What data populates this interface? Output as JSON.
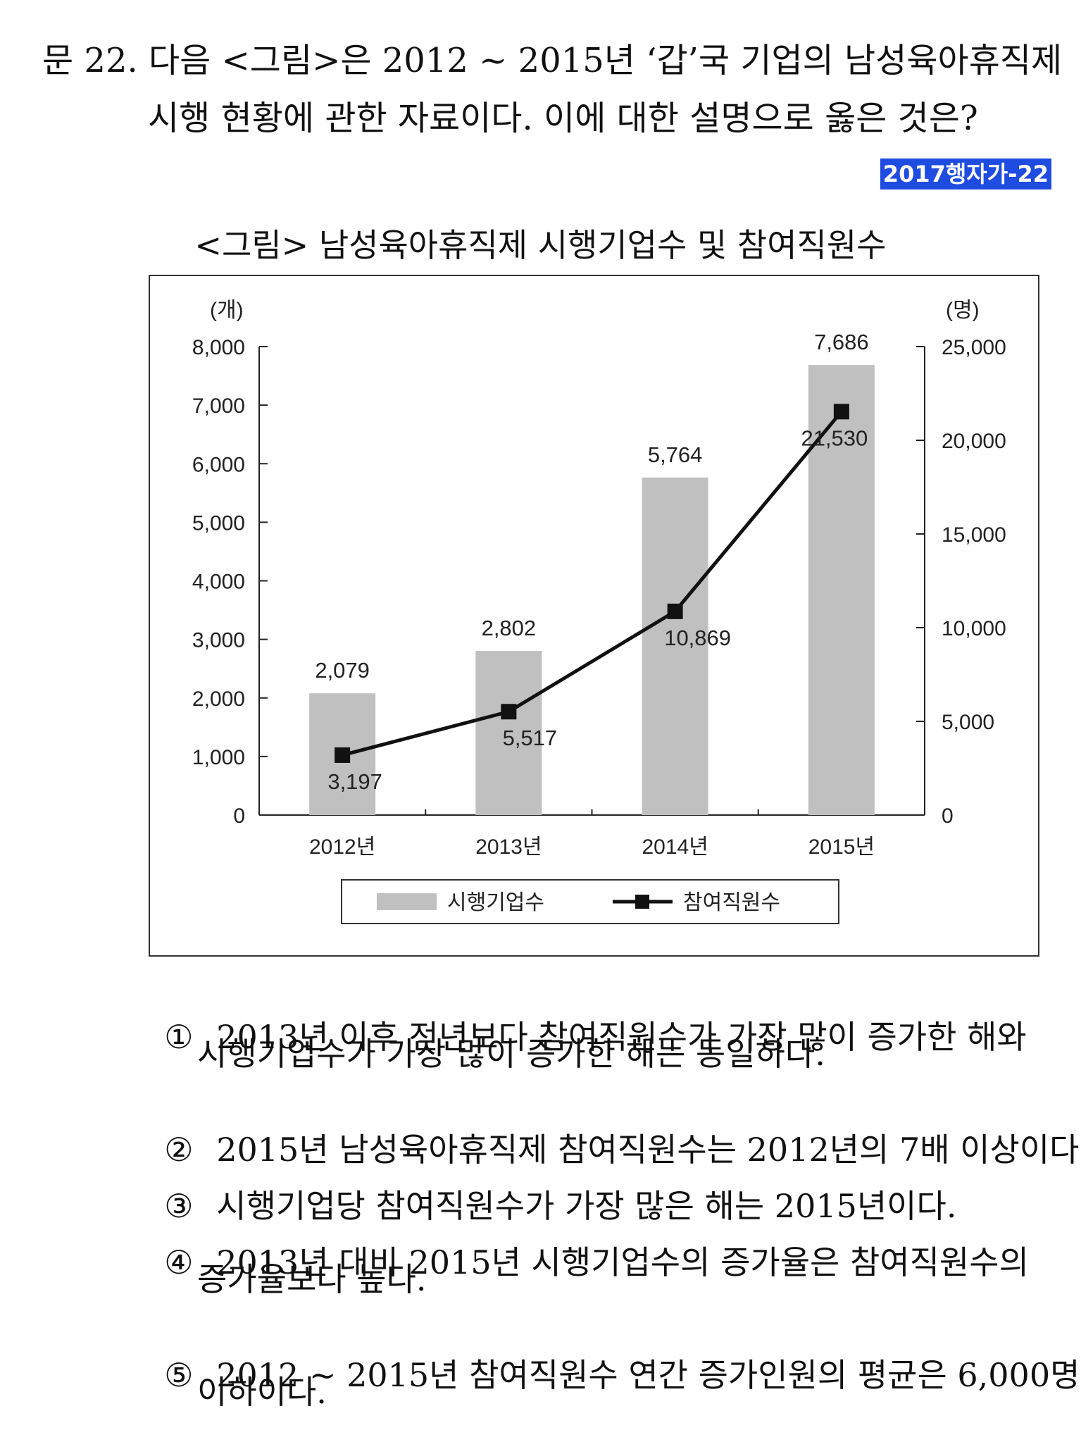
{
  "question": {
    "line1": "문 22. 다음 <그림>은 2012 ~ 2015년 ‘갑’국 기업의 남성육아휴직제",
    "line2": "시행 현황에 관한 자료이다. 이에 대한 설명으로 옳은 것은?",
    "source_tag": "2017행자가-22"
  },
  "figure_title": "<그림> 남성육아휴직제 시행기업수 및 참여직원수",
  "chart_data": {
    "type": "bar",
    "categories": [
      "2012년",
      "2013년",
      "2014년",
      "2015년"
    ],
    "series": [
      {
        "name": "시행기업수",
        "type": "bar",
        "axis": "left",
        "values": [
          2079,
          2802,
          5764,
          7686
        ],
        "labels": [
          "2,079",
          "2,802",
          "5,764",
          "7,686"
        ],
        "color": "#c0c0c0"
      },
      {
        "name": "참여직원수",
        "type": "line",
        "axis": "right",
        "values": [
          3197,
          5517,
          10869,
          21530
        ],
        "labels": [
          "3,197",
          "5,517",
          "10,869",
          "21,530"
        ],
        "color": "#111111"
      }
    ],
    "y_left": {
      "unit": "(개)",
      "ylim": [
        0,
        8000
      ],
      "ticks": [
        0,
        1000,
        2000,
        3000,
        4000,
        5000,
        6000,
        7000,
        8000
      ],
      "tick_labels": [
        "0",
        "1,000",
        "2,000",
        "3,000",
        "4,000",
        "5,000",
        "6,000",
        "7,000",
        "8,000"
      ]
    },
    "y_right": {
      "unit": "(명)",
      "ylim": [
        0,
        25000
      ],
      "ticks": [
        0,
        5000,
        10000,
        15000,
        20000,
        25000
      ],
      "tick_labels": [
        "0",
        "5,000",
        "10,000",
        "15,000",
        "20,000",
        "25,000"
      ]
    },
    "legend_position": "bottom",
    "grid": false
  },
  "options": [
    {
      "num": "①",
      "lines": [
        "2013년 이후 전년보다 참여직원수가 가장 많이 증가한 해와",
        "시행기업수가 가장 많이 증가한 해는 동일하다."
      ]
    },
    {
      "num": "②",
      "lines": [
        "2015년 남성육아휴직제 참여직원수는 2012년의 7배 이상이다."
      ]
    },
    {
      "num": "③",
      "lines": [
        "시행기업당 참여직원수가 가장 많은 해는 2015년이다."
      ]
    },
    {
      "num": "④",
      "lines": [
        "2013년 대비 2015년 시행기업수의 증가율은 참여직원수의",
        "증가율보다 높다."
      ]
    },
    {
      "num": "⑤",
      "lines": [
        "2012 ~ 2015년 참여직원수 연간 증가인원의 평균은 6,000명",
        "이하이다."
      ]
    }
  ]
}
